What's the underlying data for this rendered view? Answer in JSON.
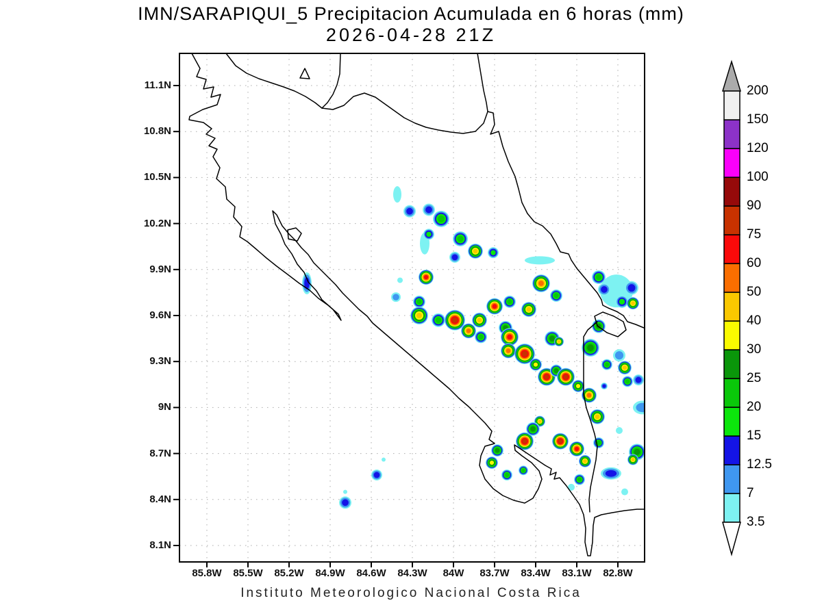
{
  "title": "IMN/SARAPIQUI_5 Precipitacion Acumulada en 6 horas (mm)",
  "subtitle": "2026-04-28 21Z",
  "footer": "Instituto Meteorologico Nacional Costa Rica",
  "chart_data": {
    "type": "heatmap",
    "title": "IMN/SARAPIQUI_5 Precipitacion Acumulada en 6 horas (mm)",
    "subtitle": "2026-04-28 21Z",
    "units": "mm",
    "grid": true,
    "legend_position": "right",
    "x_ticks": [
      "85.8W",
      "85.5W",
      "85.2W",
      "84.9W",
      "84.6W",
      "84.3W",
      "84W",
      "83.7W",
      "83.4W",
      "83.1W",
      "82.8W"
    ],
    "y_ticks": [
      "11.1N",
      "10.8N",
      "10.5N",
      "10.2N",
      "9.9N",
      "9.6N",
      "9.3N",
      "9N",
      "8.7N",
      "8.4N",
      "8.1N"
    ],
    "lon_range": [
      -86.0,
      -82.6
    ],
    "lat_range": [
      7.98,
      11.31
    ],
    "colorbar_levels": [
      3.5,
      7,
      12.5,
      15,
      20,
      25,
      30,
      40,
      50,
      60,
      75,
      90,
      100,
      120,
      150,
      200
    ],
    "colorbar_labels": [
      "200",
      "150",
      "120",
      "100",
      "90",
      "75",
      "60",
      "50",
      "40",
      "30",
      "25",
      "20",
      "15",
      "12.5",
      "7",
      "3.5"
    ],
    "colorbar_colors_bottom_to_top": [
      "#7DF2F2",
      "#3F97F0",
      "#1414E6",
      "#0CE60C",
      "#0AC80A",
      "#0A960A",
      "#FAFA00",
      "#FAC800",
      "#FA6E00",
      "#FA0A0A",
      "#C83200",
      "#960A0A",
      "#FA00FA",
      "#8C32C8",
      "#F0F0F0"
    ],
    "over_color": "#ABABAB",
    "under_color": "#FFFFFF",
    "cells": [
      {
        "lon": -84.41,
        "lat": 10.39,
        "peak": 3.5,
        "rx": 6,
        "ry": 12
      },
      {
        "lon": -84.32,
        "lat": 10.28,
        "peak": 12.5,
        "rx": 9
      },
      {
        "lon": -84.18,
        "lat": 10.29,
        "peak": 12.5,
        "rx": 9
      },
      {
        "lon": -84.09,
        "lat": 10.23,
        "peak": 20,
        "rx": 12
      },
      {
        "lon": -84.21,
        "lat": 10.07,
        "peak": 3.5,
        "rx": 7,
        "ry": 16
      },
      {
        "lon": -84.18,
        "lat": 10.13,
        "peak": 15,
        "rx": 8
      },
      {
        "lon": -83.95,
        "lat": 10.1,
        "peak": 20,
        "rx": 11
      },
      {
        "lon": -83.99,
        "lat": 9.98,
        "peak": 12.5,
        "rx": 8
      },
      {
        "lon": -83.84,
        "lat": 10.02,
        "peak": 40,
        "rx": 11
      },
      {
        "lon": -83.71,
        "lat": 10.01,
        "peak": 15,
        "rx": 8
      },
      {
        "lon": -83.37,
        "lat": 9.96,
        "peak": 3.5,
        "rx": 22,
        "ry": 6
      },
      {
        "lon": -84.2,
        "lat": 9.85,
        "peak": 60,
        "rx": 11
      },
      {
        "lon": -85.07,
        "lat": 9.81,
        "peak": 12.5,
        "rx": 7,
        "ry": 16
      },
      {
        "lon": -84.42,
        "lat": 9.72,
        "peak": 7,
        "rx": 7
      },
      {
        "lon": -84.39,
        "lat": 9.83,
        "peak": 3.5,
        "rx": 4
      },
      {
        "lon": -84.25,
        "lat": 9.69,
        "peak": 20,
        "rx": 9
      },
      {
        "lon": -83.36,
        "lat": 9.81,
        "peak": 50,
        "rx": 13
      },
      {
        "lon": -83.25,
        "lat": 9.73,
        "peak": 20,
        "rx": 9
      },
      {
        "lon": -82.81,
        "lat": 9.76,
        "peak": 3.5,
        "rx": 24
      },
      {
        "lon": -82.94,
        "lat": 9.85,
        "peak": 20,
        "rx": 10
      },
      {
        "lon": -82.9,
        "lat": 9.77,
        "peak": 12.5,
        "rx": 9
      },
      {
        "lon": -82.7,
        "lat": 9.78,
        "peak": 12.5,
        "rx": 10
      },
      {
        "lon": -82.77,
        "lat": 9.69,
        "peak": 15,
        "rx": 9
      },
      {
        "lon": -82.69,
        "lat": 9.68,
        "peak": 40,
        "rx": 9
      },
      {
        "lon": -84.25,
        "lat": 9.6,
        "peak": 40,
        "rx": 13
      },
      {
        "lon": -84.11,
        "lat": 9.57,
        "peak": 20,
        "rx": 10
      },
      {
        "lon": -83.99,
        "lat": 9.57,
        "peak": 75,
        "rx": 15
      },
      {
        "lon": -83.89,
        "lat": 9.5,
        "peak": 50,
        "rx": 11
      },
      {
        "lon": -83.81,
        "lat": 9.57,
        "peak": 40,
        "rx": 11
      },
      {
        "lon": -83.8,
        "lat": 9.46,
        "peak": 20,
        "rx": 9
      },
      {
        "lon": -83.7,
        "lat": 9.66,
        "peak": 60,
        "rx": 12
      },
      {
        "lon": -83.59,
        "lat": 9.69,
        "peak": 20,
        "rx": 9
      },
      {
        "lon": -83.45,
        "lat": 9.64,
        "peak": 40,
        "rx": 11
      },
      {
        "lon": -83.62,
        "lat": 9.52,
        "peak": 25,
        "rx": 10
      },
      {
        "lon": -83.59,
        "lat": 9.46,
        "peak": 60,
        "rx": 13
      },
      {
        "lon": -83.6,
        "lat": 9.37,
        "peak": 50,
        "rx": 11
      },
      {
        "lon": -83.48,
        "lat": 9.35,
        "peak": 75,
        "rx": 15
      },
      {
        "lon": -83.4,
        "lat": 9.28,
        "peak": 30,
        "rx": 9
      },
      {
        "lon": -83.32,
        "lat": 9.2,
        "peak": 75,
        "rx": 13
      },
      {
        "lon": -83.25,
        "lat": 9.24,
        "peak": 25,
        "rx": 9
      },
      {
        "lon": -83.18,
        "lat": 9.2,
        "peak": 75,
        "rx": 13
      },
      {
        "lon": -83.09,
        "lat": 9.14,
        "peak": 30,
        "rx": 9
      },
      {
        "lon": -83.01,
        "lat": 9.08,
        "peak": 50,
        "rx": 11
      },
      {
        "lon": -83.28,
        "lat": 9.45,
        "peak": 25,
        "rx": 11
      },
      {
        "lon": -83.23,
        "lat": 9.43,
        "peak": 40,
        "rx": 7
      },
      {
        "lon": -83.0,
        "lat": 9.39,
        "peak": 25,
        "rx": 13
      },
      {
        "lon": -82.94,
        "lat": 9.53,
        "peak": 25,
        "rx": 10
      },
      {
        "lon": -82.88,
        "lat": 9.28,
        "peak": 20,
        "rx": 8
      },
      {
        "lon": -82.75,
        "lat": 9.26,
        "peak": 40,
        "rx": 10
      },
      {
        "lon": -82.73,
        "lat": 9.17,
        "peak": 20,
        "rx": 8
      },
      {
        "lon": -82.9,
        "lat": 9.14,
        "peak": 12.5,
        "rx": 5
      },
      {
        "lon": -82.79,
        "lat": 9.34,
        "peak": 7,
        "rx": 9
      },
      {
        "lon": -82.65,
        "lat": 9.18,
        "peak": 12.5,
        "rx": 8
      },
      {
        "lon": -82.62,
        "lat": 9.0,
        "peak": 7,
        "rx": 14,
        "ry": 10
      },
      {
        "lon": -82.95,
        "lat": 8.94,
        "peak": 40,
        "rx": 11
      },
      {
        "lon": -82.94,
        "lat": 8.77,
        "peak": 20,
        "rx": 8
      },
      {
        "lon": -82.66,
        "lat": 8.71,
        "peak": 25,
        "rx": 12
      },
      {
        "lon": -82.69,
        "lat": 8.66,
        "peak": 40,
        "rx": 8
      },
      {
        "lon": -83.48,
        "lat": 8.78,
        "peak": 75,
        "rx": 13
      },
      {
        "lon": -83.37,
        "lat": 8.91,
        "peak": 40,
        "rx": 8
      },
      {
        "lon": -83.42,
        "lat": 8.86,
        "peak": 25,
        "rx": 10
      },
      {
        "lon": -83.22,
        "lat": 8.78,
        "peak": 75,
        "rx": 12
      },
      {
        "lon": -83.1,
        "lat": 8.73,
        "peak": 60,
        "rx": 11
      },
      {
        "lon": -83.04,
        "lat": 8.65,
        "peak": 40,
        "rx": 9
      },
      {
        "lon": -83.68,
        "lat": 8.72,
        "peak": 25,
        "rx": 9
      },
      {
        "lon": -83.72,
        "lat": 8.64,
        "peak": 30,
        "rx": 9
      },
      {
        "lon": -83.61,
        "lat": 8.56,
        "peak": 20,
        "rx": 8
      },
      {
        "lon": -83.49,
        "lat": 8.59,
        "peak": 20,
        "rx": 7
      },
      {
        "lon": -83.08,
        "lat": 8.53,
        "peak": 20,
        "rx": 8
      },
      {
        "lon": -82.85,
        "lat": 8.57,
        "peak": 12.5,
        "rx": 15,
        "ry": 9
      },
      {
        "lon": -84.56,
        "lat": 8.56,
        "peak": 12.5,
        "rx": 8
      },
      {
        "lon": -84.79,
        "lat": 8.38,
        "peak": 12.5,
        "rx": 9
      },
      {
        "lon": -84.79,
        "lat": 8.45,
        "peak": 3.5,
        "rx": 3
      },
      {
        "lon": -84.51,
        "lat": 8.66,
        "peak": 3.5,
        "rx": 3
      },
      {
        "lon": -83.14,
        "lat": 8.48,
        "peak": 3.5,
        "rx": 5
      },
      {
        "lon": -82.75,
        "lat": 8.45,
        "peak": 3.5,
        "rx": 5
      },
      {
        "lon": -82.79,
        "lat": 8.85,
        "peak": 3.5,
        "rx": 5
      }
    ]
  },
  "map": {
    "coast_paths": [
      "M 280,78 L 292,100 L 287,112 L 301,116 L 297,130 L 312,127 L 308,142 L 322,138 L 317,153 L 296,160 L 277,170 L 276,175 L 297,179 L 309,188 L 301,196 L 314,202 L 305,213 L 317,218 L 311,229 L 321,245 L 316,261 L 329,273 L 331,291 L 343,302 L 341,317 L 353,331 L 350,346 L 361,353 L 374,364 L 389,377 L 404,389 L 420,401 L 437,414 L 452,424 L 465,436 L 479,446 L 494,459 L 498,468 L 486,452 L 470,438 L 462,425 L 450,412 L 444,398 L 434,386 L 426,371 L 416,357 L 410,342 L 402,327 L 398,308 L 404,314 L 412,330 L 422,342 L 432,352 L 440,362 L 450,372 L 458,384 L 468,394 L 478,404 L 490,416 L 500,428 L 512,440 L 524,452 L 536,462 L 544,472 L 558,484 L 572,496 L 586,508 L 600,520 L 614,532 L 628,544 L 642,556 L 656,568 L 670,582 L 684,594 L 696,606 L 708,618 L 718,630 L 714,642 L 722,648 L 708,652 L 702,666 L 700,680 L 708,700 L 720,714 L 734,724 L 750,731 L 766,735 L 778,728 L 786,714 L 791,700 L 787,688 L 776,676 L 762,666 L 752,658 L 751,650 L 760,656 L 772,664 L 784,672 L 796,680 L 805,685 L 803,694 L 812,690 L 809,700 L 817,698 L 827,710 L 837,724 L 846,737 L 852,752 L 855,772 L 854,792 L 858,812 L 862,812 L 865,792 L 866,768 L 868,756 L 878,752 L 894,749 L 912,746 L 930,744 L 941,744",
      "M 330,78 L 344,96 L 360,107 L 378,115 L 396,121 L 414,127 L 430,133 L 446,141 L 460,150 L 470,158 L 478,150 L 486,138 L 492,124 L 496,108 L 497,78",
      "M 445,100 L 452,115 L 438,114 Z",
      "M 420,336 L 432,333 L 440,341 L 434,352 L 421,349 Z",
      "M 470,158 L 486,160 L 502,154 L 516,141 L 532,136 L 548,142 L 562,152 L 576,162 L 590,172 L 606,180 L 622,186 L 640,190 L 658,193 L 676,195 L 694,192 L 706,180 L 712,163 L 720,165 L 722,182 L 716,196 L 728,192 L 734,214 L 742,236 L 752,258 L 757,276 L 762,296 L 770,312 L 780,324 L 792,330 L 804,342 L 812,356 L 818,368 L 830,371 L 834,380 L 842,392 L 852,404 L 862,416 L 872,428 L 878,438 L 880,446 L 888,450 L 900,455 L 910,461 L 916,470 L 928,474 L 940,479",
      "M 697,78 L 702,108 L 706,132 L 710,150 L 712,163",
      "M 868,462 L 880,456 L 896,462 L 910,470 L 914,482 L 902,492 L 886,486 L 872,476 Z",
      "M 872,470 L 858,482 L 852,492 L 852,520 L 852,548 L 852,576 L 856,596 L 862,614 L 868,634 L 872,652 L 870,672 L 866,692 L 862,712 L 860,730 L 861,748"
    ]
  }
}
